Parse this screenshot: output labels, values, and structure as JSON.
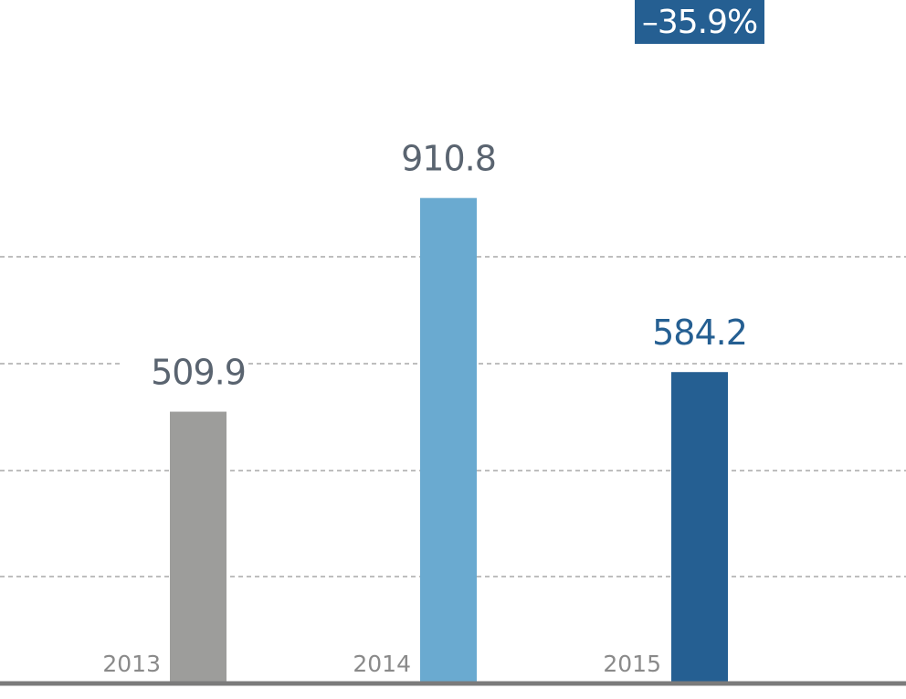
{
  "change_badge": {
    "text": "–35.9%",
    "bg_color": "#255f92",
    "text_color": "#ffffff"
  },
  "chart_data": {
    "type": "bar",
    "categories": [
      "2013",
      "2014",
      "2015"
    ],
    "values": [
      509.9,
      910.8,
      584.2
    ],
    "value_labels": [
      "509.9",
      "910.8",
      "584.2"
    ],
    "bar_colors": [
      "#9d9d9b",
      "#6aaad0",
      "#255f92"
    ],
    "value_label_colors": [
      "#5a6470",
      "#5a6470",
      "#255f92"
    ],
    "ylim": [
      0,
      1000
    ],
    "grid": true,
    "grid_style": "dashed"
  }
}
